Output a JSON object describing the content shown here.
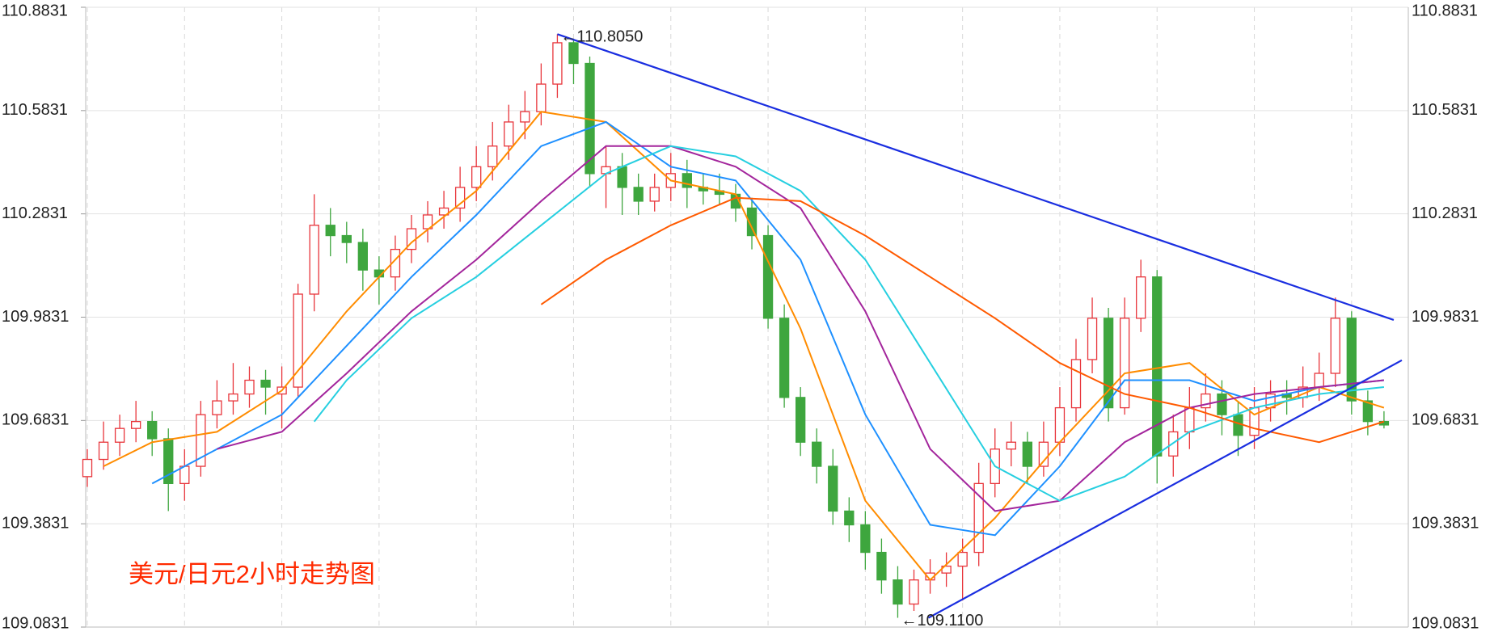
{
  "chart_data": {
    "type": "candlestick",
    "title": "美元/日元2小时走势图",
    "ylim": [
      109.0831,
      110.8831
    ],
    "yticks": [
      109.0831,
      109.3831,
      109.6831,
      109.9831,
      110.2831,
      110.5831,
      110.8831
    ],
    "grid": true,
    "up_color": "#e8353b",
    "down_color": "#3ea63e",
    "ohlc": [
      [
        109.52,
        109.6,
        109.49,
        109.57
      ],
      [
        109.57,
        109.68,
        109.54,
        109.62
      ],
      [
        109.62,
        109.7,
        109.58,
        109.66
      ],
      [
        109.66,
        109.74,
        109.62,
        109.68
      ],
      [
        109.68,
        109.71,
        109.58,
        109.63
      ],
      [
        109.63,
        109.66,
        109.42,
        109.5
      ],
      [
        109.5,
        109.6,
        109.45,
        109.55
      ],
      [
        109.55,
        109.74,
        109.52,
        109.7
      ],
      [
        109.7,
        109.8,
        109.66,
        109.74
      ],
      [
        109.74,
        109.85,
        109.7,
        109.76
      ],
      [
        109.76,
        109.84,
        109.72,
        109.8
      ],
      [
        109.8,
        109.83,
        109.7,
        109.78
      ],
      [
        109.76,
        109.84,
        109.66,
        109.78
      ],
      [
        109.78,
        110.08,
        109.75,
        110.05
      ],
      [
        110.05,
        110.34,
        110.0,
        110.25
      ],
      [
        110.25,
        110.3,
        110.16,
        110.22
      ],
      [
        110.22,
        110.26,
        110.14,
        110.2
      ],
      [
        110.2,
        110.24,
        110.06,
        110.12
      ],
      [
        110.12,
        110.16,
        110.02,
        110.1
      ],
      [
        110.1,
        110.22,
        110.06,
        110.18
      ],
      [
        110.18,
        110.28,
        110.14,
        110.24
      ],
      [
        110.24,
        110.32,
        110.2,
        110.28
      ],
      [
        110.28,
        110.35,
        110.24,
        110.3
      ],
      [
        110.3,
        110.42,
        110.26,
        110.36
      ],
      [
        110.36,
        110.48,
        110.32,
        110.42
      ],
      [
        110.42,
        110.55,
        110.38,
        110.48
      ],
      [
        110.48,
        110.6,
        110.44,
        110.55
      ],
      [
        110.55,
        110.64,
        110.5,
        110.58
      ],
      [
        110.58,
        110.72,
        110.54,
        110.66
      ],
      [
        110.66,
        110.805,
        110.62,
        110.78
      ],
      [
        110.78,
        110.79,
        110.66,
        110.72
      ],
      [
        110.72,
        110.74,
        110.36,
        110.4
      ],
      [
        110.4,
        110.48,
        110.3,
        110.42
      ],
      [
        110.42,
        110.46,
        110.28,
        110.36
      ],
      [
        110.36,
        110.4,
        110.28,
        110.32
      ],
      [
        110.32,
        110.4,
        110.29,
        110.36
      ],
      [
        110.36,
        110.46,
        110.32,
        110.4
      ],
      [
        110.4,
        110.44,
        110.3,
        110.36
      ],
      [
        110.36,
        110.4,
        110.31,
        110.35
      ],
      [
        110.35,
        110.4,
        110.31,
        110.34
      ],
      [
        110.34,
        110.37,
        110.26,
        110.3
      ],
      [
        110.3,
        110.33,
        110.18,
        110.22
      ],
      [
        110.22,
        110.25,
        109.95,
        109.98
      ],
      [
        109.98,
        110.02,
        109.72,
        109.75
      ],
      [
        109.75,
        109.78,
        109.58,
        109.62
      ],
      [
        109.62,
        109.66,
        109.5,
        109.55
      ],
      [
        109.55,
        109.6,
        109.38,
        109.42
      ],
      [
        109.42,
        109.46,
        109.33,
        109.38
      ],
      [
        109.38,
        109.42,
        109.25,
        109.3
      ],
      [
        109.3,
        109.34,
        109.18,
        109.22
      ],
      [
        109.22,
        109.26,
        109.11,
        109.15
      ],
      [
        109.15,
        109.25,
        109.13,
        109.22
      ],
      [
        109.22,
        109.28,
        109.18,
        109.24
      ],
      [
        109.24,
        109.3,
        109.2,
        109.26
      ],
      [
        109.26,
        109.34,
        109.16,
        109.3
      ],
      [
        109.3,
        109.56,
        109.26,
        109.5
      ],
      [
        109.5,
        109.66,
        109.46,
        109.6
      ],
      [
        109.6,
        109.68,
        109.55,
        109.62
      ],
      [
        109.62,
        109.65,
        109.5,
        109.55
      ],
      [
        109.55,
        109.68,
        109.52,
        109.62
      ],
      [
        109.62,
        109.78,
        109.58,
        109.72
      ],
      [
        109.72,
        109.92,
        109.68,
        109.86
      ],
      [
        109.86,
        110.04,
        109.82,
        109.98
      ],
      [
        109.98,
        110.01,
        109.68,
        109.72
      ],
      [
        109.72,
        110.04,
        109.7,
        109.98
      ],
      [
        109.98,
        110.15,
        109.94,
        110.1
      ],
      [
        110.1,
        110.12,
        109.5,
        109.58
      ],
      [
        109.58,
        109.7,
        109.52,
        109.65
      ],
      [
        109.65,
        109.78,
        109.6,
        109.72
      ],
      [
        109.72,
        109.82,
        109.68,
        109.76
      ],
      [
        109.76,
        109.8,
        109.64,
        109.7
      ],
      [
        109.7,
        109.74,
        109.58,
        109.64
      ],
      [
        109.64,
        109.78,
        109.6,
        109.72
      ],
      [
        109.72,
        109.8,
        109.68,
        109.76
      ],
      [
        109.76,
        109.8,
        109.7,
        109.75
      ],
      [
        109.75,
        109.84,
        109.72,
        109.78
      ],
      [
        109.78,
        109.88,
        109.74,
        109.82
      ],
      [
        109.82,
        110.04,
        109.78,
        109.98
      ],
      [
        109.98,
        110.0,
        109.7,
        109.74
      ],
      [
        109.74,
        109.77,
        109.64,
        109.68
      ],
      [
        109.68,
        109.71,
        109.66,
        109.67
      ]
    ],
    "series": [
      {
        "color": "#ff8c00",
        "x": [
          2,
          5,
          9,
          13,
          17,
          21,
          25,
          29,
          33,
          37,
          41,
          45,
          49,
          53,
          57,
          61,
          65,
          69,
          73,
          77,
          81
        ],
        "values": [
          109.55,
          109.62,
          109.65,
          109.77,
          110.0,
          110.2,
          110.35,
          110.58,
          110.55,
          110.38,
          110.34,
          109.95,
          109.45,
          109.22,
          109.4,
          109.62,
          109.82,
          109.85,
          109.7,
          109.78,
          109.72
        ]
      },
      {
        "color": "#1e90ff",
        "x": [
          5,
          9,
          13,
          17,
          21,
          25,
          29,
          33,
          37,
          41,
          45,
          49,
          53,
          57,
          61,
          65,
          69,
          73,
          77,
          81
        ],
        "values": [
          109.5,
          109.6,
          109.7,
          109.9,
          110.1,
          110.28,
          110.48,
          110.55,
          110.42,
          110.38,
          110.15,
          109.7,
          109.38,
          109.35,
          109.55,
          109.8,
          109.8,
          109.74,
          109.78,
          109.8
        ]
      },
      {
        "color": "#a3259c",
        "x": [
          9,
          13,
          17,
          21,
          25,
          29,
          33,
          37,
          41,
          45,
          49,
          53,
          57,
          61,
          65,
          69,
          73,
          77,
          81
        ],
        "values": [
          109.6,
          109.65,
          109.82,
          110.0,
          110.15,
          110.32,
          110.48,
          110.48,
          110.42,
          110.3,
          110.0,
          109.6,
          109.42,
          109.45,
          109.62,
          109.72,
          109.76,
          109.78,
          109.8
        ]
      },
      {
        "color": "#26cfe0",
        "x": [
          15,
          17,
          21,
          25,
          29,
          33,
          37,
          41,
          45,
          49,
          53,
          57,
          61,
          65,
          69,
          73,
          77,
          81
        ],
        "values": [
          109.68,
          109.8,
          109.98,
          110.1,
          110.25,
          110.4,
          110.48,
          110.45,
          110.35,
          110.15,
          109.85,
          109.55,
          109.45,
          109.52,
          109.65,
          109.72,
          109.76,
          109.78
        ]
      },
      {
        "color": "#ff5a00",
        "x": [
          29,
          33,
          37,
          41,
          45,
          49,
          53,
          57,
          61,
          65,
          69,
          73,
          77,
          81
        ],
        "values": [
          110.02,
          110.15,
          110.25,
          110.33,
          110.32,
          110.22,
          110.1,
          109.98,
          109.85,
          109.76,
          109.72,
          109.66,
          109.62,
          109.68
        ]
      }
    ],
    "trendlines": [
      {
        "color": "#1a2ee0",
        "x": [
          30,
          81.6
        ],
        "values": [
          110.805,
          109.975
        ]
      },
      {
        "color": "#1a2ee0",
        "x": [
          52.9,
          82.1
        ],
        "values": [
          109.11,
          109.858
        ]
      }
    ],
    "annotations": [
      {
        "text": "←110.8050",
        "x": 30,
        "value": 110.805
      },
      {
        "text": "←109.1100",
        "x": 51,
        "value": 109.11
      }
    ]
  }
}
